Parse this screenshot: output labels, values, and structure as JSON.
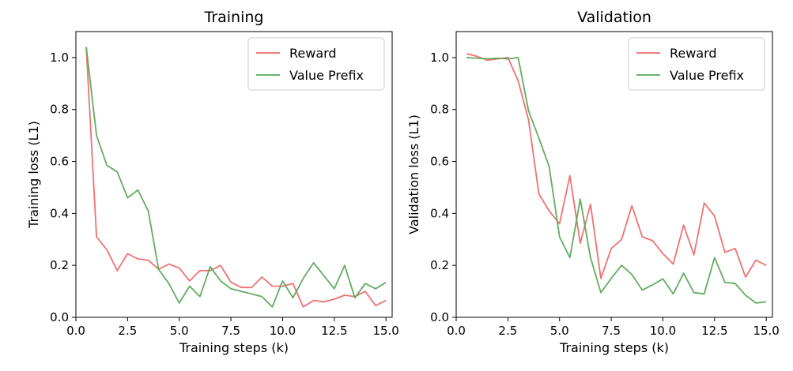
{
  "colors": {
    "reward": "#ee6a6a",
    "value_prefix": "#5aa85a"
  },
  "chart_data": [
    {
      "type": "line",
      "title": "Training",
      "xlabel": "Training steps (k)",
      "ylabel": "Training loss (L1)",
      "xlim": [
        0,
        15.3
      ],
      "ylim": [
        0,
        1.1
      ],
      "xticks": [
        0.0,
        2.5,
        5.0,
        7.5,
        10.0,
        12.5,
        15.0
      ],
      "xtick_labels": [
        "0.0",
        "2.5",
        "5.0",
        "7.5",
        "10.0",
        "12.5",
        "15.0"
      ],
      "yticks": [
        0.0,
        0.2,
        0.4,
        0.6,
        0.8,
        1.0
      ],
      "ytick_labels": [
        "0.0",
        "0.2",
        "0.4",
        "0.6",
        "0.8",
        "1.0"
      ],
      "legend_position": "top-right",
      "grid": false,
      "x": [
        0.5,
        1.0,
        1.5,
        2.0,
        2.5,
        3.0,
        3.5,
        4.0,
        4.5,
        5.0,
        5.5,
        6.0,
        6.5,
        7.0,
        7.5,
        8.0,
        8.5,
        9.0,
        9.5,
        10.0,
        10.5,
        11.0,
        11.5,
        12.0,
        12.5,
        13.0,
        13.5,
        14.0,
        14.5,
        15.0
      ],
      "series": [
        {
          "name": "Reward",
          "color": "#ee6a6a",
          "values": [
            1.04,
            0.31,
            0.26,
            0.18,
            0.245,
            0.225,
            0.22,
            0.185,
            0.205,
            0.19,
            0.14,
            0.18,
            0.18,
            0.2,
            0.135,
            0.115,
            0.115,
            0.155,
            0.12,
            0.12,
            0.13,
            0.04,
            0.065,
            0.06,
            0.07,
            0.085,
            0.08,
            0.1,
            0.045,
            0.065
          ]
        },
        {
          "name": "Value Prefix",
          "color": "#5aa85a",
          "values": [
            1.04,
            0.7,
            0.585,
            0.56,
            0.46,
            0.49,
            0.41,
            0.185,
            0.13,
            0.055,
            0.12,
            0.08,
            0.195,
            0.14,
            0.11,
            0.1,
            0.09,
            0.08,
            0.04,
            0.14,
            0.075,
            0.15,
            0.21,
            0.16,
            0.11,
            0.2,
            0.075,
            0.13,
            0.11,
            0.135
          ]
        }
      ]
    },
    {
      "type": "line",
      "title": "Validation",
      "xlabel": "Training steps (k)",
      "ylabel": "Validation loss (L1)",
      "xlim": [
        0,
        15.3
      ],
      "ylim": [
        0,
        1.1
      ],
      "xticks": [
        0.0,
        2.5,
        5.0,
        7.5,
        10.0,
        12.5,
        15.0
      ],
      "xtick_labels": [
        "0.0",
        "2.5",
        "5.0",
        "7.5",
        "10.0",
        "12.5",
        "15.0"
      ],
      "yticks": [
        0.0,
        0.2,
        0.4,
        0.6,
        0.8,
        1.0
      ],
      "ytick_labels": [
        "0.0",
        "0.2",
        "0.4",
        "0.6",
        "0.8",
        "1.0"
      ],
      "legend_position": "top-right",
      "grid": false,
      "x": [
        0.5,
        1.0,
        1.5,
        2.0,
        2.5,
        3.0,
        3.5,
        4.0,
        4.5,
        5.0,
        5.5,
        6.0,
        6.5,
        7.0,
        7.5,
        8.0,
        8.5,
        9.0,
        9.5,
        10.0,
        10.5,
        11.0,
        11.5,
        12.0,
        12.5,
        13.0,
        13.5,
        14.0,
        14.5,
        15.0
      ],
      "series": [
        {
          "name": "Reward",
          "color": "#ee6a6a",
          "values": [
            1.015,
            1.005,
            0.99,
            0.995,
            1.0,
            0.91,
            0.76,
            0.475,
            0.41,
            0.36,
            0.545,
            0.285,
            0.435,
            0.15,
            0.265,
            0.3,
            0.43,
            0.31,
            0.295,
            0.245,
            0.205,
            0.355,
            0.24,
            0.44,
            0.39,
            0.25,
            0.265,
            0.155,
            0.22,
            0.2
          ]
        },
        {
          "name": "Value Prefix",
          "color": "#5aa85a",
          "values": [
            1.0,
            0.998,
            0.995,
            0.998,
            0.995,
            1.0,
            0.795,
            0.69,
            0.58,
            0.31,
            0.23,
            0.455,
            0.23,
            0.095,
            0.15,
            0.2,
            0.165,
            0.105,
            0.125,
            0.148,
            0.09,
            0.17,
            0.095,
            0.09,
            0.23,
            0.135,
            0.13,
            0.085,
            0.055,
            0.06
          ]
        }
      ]
    }
  ]
}
